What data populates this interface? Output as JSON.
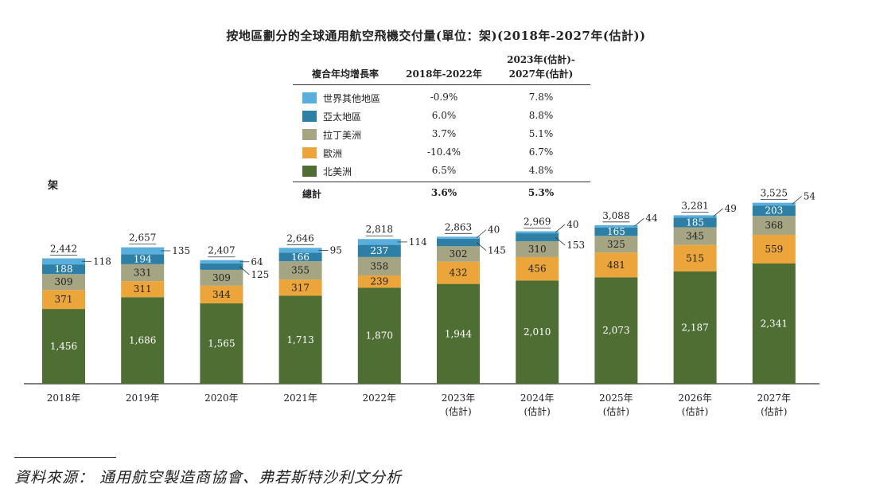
{
  "title": "按地區劃分的全球通用航空飛機交付量(單位：架)(2018年-2027年(估計))",
  "unit_label": "架",
  "legend_table": {
    "header_label": "複合年均增長率",
    "col1_header": "2018年-2022年",
    "col2_header_line1": "2023年(估計)-",
    "col2_header_line2": "2027年(估計)",
    "rows": [
      {
        "label": "世界其他地區",
        "color": "#5aaedc",
        "cagr1": "-0.9%",
        "cagr2": "7.8%"
      },
      {
        "label": "亞太地區",
        "color": "#2e7fa6",
        "cagr1": "6.0%",
        "cagr2": "8.8%"
      },
      {
        "label": "拉丁美洲",
        "color": "#a5a584",
        "cagr1": "3.7%",
        "cagr2": "5.1%"
      },
      {
        "label": "歐洲",
        "color": "#eba53a",
        "cagr1": "-10.4%",
        "cagr2": "6.7%"
      },
      {
        "label": "北美洲",
        "color": "#4f6e34",
        "cagr1": "6.5%",
        "cagr2": "4.8%"
      }
    ],
    "total_label": "總計",
    "total_cagr1": "3.6%",
    "total_cagr2": "5.3%"
  },
  "chart_data": {
    "type": "bar",
    "stacked": true,
    "categories": [
      "2018年",
      "2019年",
      "2020年",
      "2021年",
      "2022年",
      "2023年(估計)",
      "2024年(估計)",
      "2025年(估計)",
      "2026年(估計)",
      "2027年(估計)"
    ],
    "category_lines": [
      [
        "2018年"
      ],
      [
        "2019年"
      ],
      [
        "2020年"
      ],
      [
        "2021年"
      ],
      [
        "2022年"
      ],
      [
        "2023年",
        "(估計)"
      ],
      [
        "2024年",
        "(估計)"
      ],
      [
        "2025年",
        "(估計)"
      ],
      [
        "2026年",
        "(估計)"
      ],
      [
        "2027年",
        "(估計)"
      ]
    ],
    "series": [
      {
        "name": "北美洲",
        "color": "#4f6e34",
        "values": [
          1456,
          1686,
          1565,
          1713,
          1870,
          1944,
          2010,
          2073,
          2187,
          2341
        ]
      },
      {
        "name": "歐洲",
        "color": "#eba53a",
        "values": [
          371,
          311,
          344,
          317,
          239,
          432,
          456,
          481,
          515,
          559
        ]
      },
      {
        "name": "拉丁美洲",
        "color": "#a5a584",
        "values": [
          309,
          331,
          309,
          355,
          358,
          302,
          310,
          325,
          345,
          368
        ]
      },
      {
        "name": "亞太地區",
        "color": "#2e7fa6",
        "values": [
          188,
          194,
          125,
          166,
          237,
          145,
          153,
          165,
          185,
          203
        ]
      },
      {
        "name": "世界其他地區",
        "color": "#5aaedc",
        "values": [
          118,
          135,
          64,
          95,
          114,
          40,
          40,
          44,
          49,
          54
        ]
      }
    ],
    "totals": [
      2442,
      2657,
      2407,
      2646,
      2818,
      2863,
      2969,
      3088,
      3281,
      3525
    ],
    "value_labels": [
      [
        "1,456",
        "371",
        "309",
        "188",
        "118"
      ],
      [
        "1,686",
        "311",
        "331",
        "194",
        "135"
      ],
      [
        "1,565",
        "344",
        "309",
        "125",
        "64"
      ],
      [
        "1,713",
        "317",
        "355",
        "166",
        "95"
      ],
      [
        "1,870",
        "239",
        "358",
        "237",
        "114"
      ],
      [
        "1,944",
        "432",
        "302",
        "145",
        "40"
      ],
      [
        "2,010",
        "456",
        "310",
        "153",
        "40"
      ],
      [
        "2,073",
        "481",
        "325",
        "165",
        "44"
      ],
      [
        "2,187",
        "515",
        "345",
        "185",
        "49"
      ],
      [
        "2,341",
        "559",
        "368",
        "203",
        "54"
      ]
    ],
    "total_labels": [
      "2,442",
      "2,657",
      "2,407",
      "2,646",
      "2,818",
      "2,863",
      "2,969",
      "3,088",
      "3,281",
      "3,525"
    ],
    "ylabel": "架"
  },
  "source": "資料來源： 通用航空製造商協會、弗若斯特沙利文分析"
}
